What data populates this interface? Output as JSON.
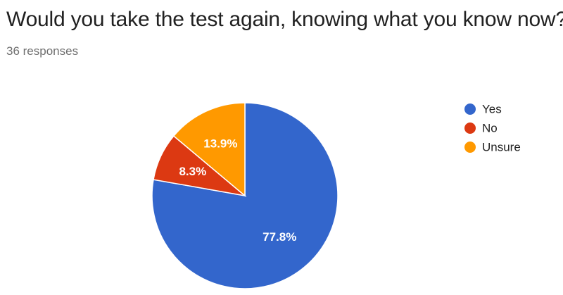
{
  "header": {
    "question": "Would you take the test again, knowing what you know now?",
    "responses": "36 responses"
  },
  "chart_data": {
    "type": "pie",
    "title": "Would you take the test again, knowing what you know now?",
    "total_responses": 36,
    "categories": [
      "Yes",
      "No",
      "Unsure"
    ],
    "values": [
      28,
      3,
      5
    ],
    "labels": [
      "77.8%",
      "8.3%",
      "13.9%"
    ],
    "colors": [
      "#3366cc",
      "#dc3912",
      "#ff9900"
    ],
    "legend_position": "right"
  }
}
